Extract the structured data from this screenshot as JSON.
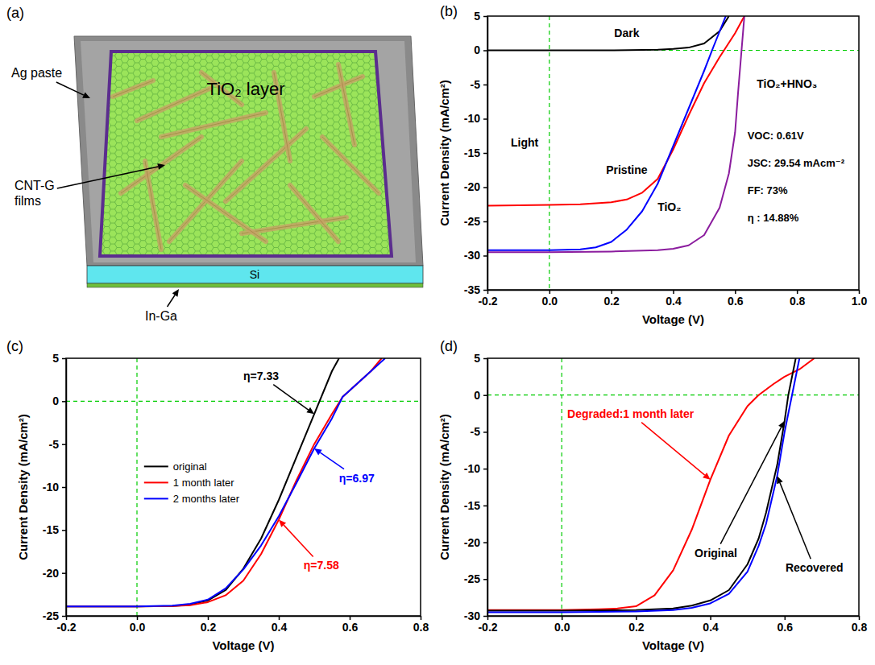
{
  "diagram": {
    "panel_label": "(a)",
    "labels": {
      "layer": "TiO₂ layer",
      "electrode": "Ag paste",
      "film": "CNT-G films",
      "substrate": "Si",
      "back_contact": "In-Ga"
    }
  },
  "chart_data": [
    {
      "panel_label": "(b)",
      "type": "line",
      "x_label": "Voltage (V)",
      "y_label": "Current Density (mA/cm²)",
      "xlim": [
        -0.2,
        1.0
      ],
      "xticks": [
        -0.2,
        {
          "value": 0,
          "label": "0.0"
        },
        0.2,
        0.4,
        0.6,
        0.8,
        {
          "value": 1.0,
          "label": "1.0"
        }
      ],
      "ylim": [
        -35,
        5
      ],
      "yticks": [
        -35,
        -30,
        -25,
        -20,
        -15,
        -10,
        -5,
        0,
        5
      ],
      "reference_lines": [
        {
          "axis": "x",
          "value": 0,
          "color": "#00cc00",
          "line_style": "dashed"
        },
        {
          "axis": "y",
          "value": 0,
          "color": "#00cc00",
          "line_style": "dashed"
        }
      ],
      "series": [
        {
          "name": "Dark",
          "color": "#000000",
          "x": [
            -0.2,
            0,
            0.2,
            0.3,
            0.35,
            0.4,
            0.45,
            0.5,
            0.55,
            0.58
          ],
          "values": [
            0,
            0,
            0,
            0.05,
            0.1,
            0.2,
            0.4,
            1.0,
            2.8,
            5
          ]
        },
        {
          "name": "Pristine",
          "color": "#ff0000",
          "x": [
            -0.2,
            0,
            0.1,
            0.2,
            0.25,
            0.3,
            0.35,
            0.4,
            0.45,
            0.5,
            0.55,
            0.6,
            0.63
          ],
          "values": [
            -22.7,
            -22.6,
            -22.5,
            -22.2,
            -21.8,
            -20.8,
            -18.8,
            -14.5,
            -9.5,
            -4.8,
            -1,
            2.5,
            5
          ]
        },
        {
          "name": "TiO₂",
          "color": "#0000ff",
          "x": [
            -0.2,
            0,
            0.1,
            0.15,
            0.2,
            0.25,
            0.3,
            0.35,
            0.4,
            0.45,
            0.5,
            0.53,
            0.57
          ],
          "values": [
            -29.2,
            -29.2,
            -29.1,
            -28.8,
            -28.0,
            -26.2,
            -23.5,
            -19.5,
            -14,
            -8.5,
            -3,
            0.5,
            5
          ]
        },
        {
          "name": "TiO₂+HNO₃",
          "color": "#8b1c9e",
          "x": [
            -0.2,
            0,
            0.2,
            0.35,
            0.4,
            0.45,
            0.5,
            0.55,
            0.58,
            0.6,
            0.61,
            0.62,
            0.63
          ],
          "values": [
            -29.5,
            -29.5,
            -29.4,
            -29.2,
            -29,
            -28.5,
            -27,
            -23,
            -18,
            -12,
            -6,
            -0.5,
            5
          ]
        }
      ],
      "annotations": [
        {
          "text": "Light"
        },
        {
          "text": "VOC: 0.61V"
        },
        {
          "text": "JSC: 29.54 mAcm⁻²"
        },
        {
          "text": "FF: 73%"
        },
        {
          "text": "η : 14.88%"
        }
      ]
    },
    {
      "panel_label": "(c)",
      "type": "line",
      "x_label": "Voltage (V)",
      "y_label": "Current Density (mA/cm²)",
      "xlim": [
        -0.2,
        0.8
      ],
      "xticks": [
        -0.2,
        {
          "value": 0,
          "label": "0.0"
        },
        0.2,
        0.4,
        0.6,
        0.8
      ],
      "ylim": [
        -25,
        5
      ],
      "yticks": [
        -25,
        -20,
        -15,
        -10,
        -5,
        0,
        5
      ],
      "legend": "left",
      "reference_lines": [
        {
          "axis": "x",
          "value": 0,
          "color": "#00cc00",
          "line_style": "dashed"
        },
        {
          "axis": "y",
          "value": 0,
          "color": "#00cc00",
          "line_style": "dashed"
        }
      ],
      "series": [
        {
          "name": "original",
          "color": "#000000",
          "x": [
            -0.2,
            0,
            0.1,
            0.15,
            0.2,
            0.25,
            0.3,
            0.35,
            0.4,
            0.45,
            0.5,
            0.55,
            0.57
          ],
          "values": [
            -23.9,
            -23.9,
            -23.85,
            -23.7,
            -23.2,
            -22,
            -19.5,
            -16,
            -11.5,
            -6.5,
            -1.5,
            3.5,
            5
          ]
        },
        {
          "name": "1 month later",
          "color": "#ff0000",
          "x": [
            -0.2,
            0,
            0.1,
            0.15,
            0.2,
            0.25,
            0.3,
            0.35,
            0.4,
            0.45,
            0.5,
            0.55,
            0.58,
            0.62,
            0.66,
            0.69
          ],
          "values": [
            -23.9,
            -23.9,
            -23.85,
            -23.75,
            -23.4,
            -22.6,
            -20.9,
            -17.8,
            -13.8,
            -9.2,
            -5,
            -1.5,
            0.5,
            2,
            3.5,
            5
          ]
        },
        {
          "name": "2 months later",
          "color": "#0000ff",
          "x": [
            -0.2,
            0,
            0.1,
            0.15,
            0.2,
            0.25,
            0.3,
            0.35,
            0.4,
            0.45,
            0.5,
            0.55,
            0.58,
            0.62,
            0.66,
            0.7
          ],
          "values": [
            -23.9,
            -23.9,
            -23.8,
            -23.6,
            -23.1,
            -21.8,
            -19.6,
            -16.8,
            -13.4,
            -9.5,
            -5.5,
            -2,
            0.5,
            2,
            3.5,
            5
          ]
        }
      ],
      "annotations": [
        {
          "text": "η=7.33"
        },
        {
          "text": "η=6.97"
        },
        {
          "text": "η=7.58"
        }
      ]
    },
    {
      "panel_label": "(d)",
      "type": "line",
      "x_label": "Voltage (V)",
      "y_label": "Current Density (mA/cm²)",
      "xlim": [
        -0.2,
        0.8
      ],
      "xticks": [
        -0.2,
        {
          "value": 0,
          "label": "0.0"
        },
        0.2,
        0.4,
        0.6,
        0.8
      ],
      "ylim": [
        -30,
        5
      ],
      "yticks": [
        -30,
        -25,
        -20,
        -15,
        -10,
        -5,
        0,
        5
      ],
      "reference_lines": [
        {
          "axis": "x",
          "value": 0,
          "color": "#00cc00",
          "line_style": "dashed"
        },
        {
          "axis": "y",
          "value": 0,
          "color": "#00cc00",
          "line_style": "dashed"
        }
      ],
      "series": [
        {
          "name": "Degraded:1 month later",
          "color": "#ff0000",
          "x": [
            -0.2,
            0,
            0.1,
            0.15,
            0.2,
            0.25,
            0.3,
            0.35,
            0.4,
            0.45,
            0.5,
            0.53,
            0.57,
            0.6,
            0.64,
            0.68
          ],
          "values": [
            -29.2,
            -29.2,
            -29.1,
            -29,
            -28.7,
            -27.2,
            -23.8,
            -18.3,
            -11.5,
            -5.5,
            -1.5,
            0,
            1.5,
            2.5,
            3.5,
            5
          ]
        },
        {
          "name": "Original",
          "color": "#000000",
          "x": [
            -0.2,
            0,
            0.2,
            0.3,
            0.35,
            0.4,
            0.45,
            0.5,
            0.53,
            0.55,
            0.58,
            0.6,
            0.61,
            0.63
          ],
          "values": [
            -29.3,
            -29.3,
            -29.2,
            -29,
            -28.6,
            -27.9,
            -26.5,
            -23,
            -19.5,
            -16,
            -9.5,
            -3.5,
            0,
            5
          ]
        },
        {
          "name": "Recovered",
          "color": "#0000ff",
          "x": [
            -0.2,
            0,
            0.2,
            0.3,
            0.35,
            0.4,
            0.45,
            0.5,
            0.53,
            0.55,
            0.58,
            0.6,
            0.62,
            0.64
          ],
          "values": [
            -29.5,
            -29.5,
            -29.4,
            -29.2,
            -28.9,
            -28.3,
            -27,
            -24,
            -20.5,
            -17.5,
            -11,
            -5,
            0,
            5
          ]
        }
      ]
    }
  ]
}
